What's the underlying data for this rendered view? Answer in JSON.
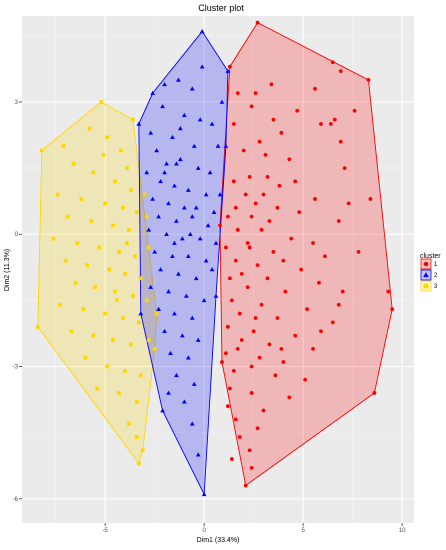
{
  "chart_data": {
    "type": "scatter",
    "title": "Cluster plot",
    "xlabel": "Dim1 (33.4%)",
    "ylabel": "Dim2 (11.3%)",
    "xlim": [
      -9.2,
      10.6
    ],
    "ylim": [
      -6.55,
      4.95
    ],
    "xticks": [
      -5,
      0,
      5,
      10
    ],
    "xtick_labels": [
      "-5",
      "0",
      "5",
      "10"
    ],
    "yticks": [
      -6,
      -3,
      0,
      3
    ],
    "ytick_labels": [
      "-6",
      "-3",
      "0",
      "3"
    ],
    "grid": true,
    "legend": {
      "title": "cluster",
      "position": "right"
    },
    "series": [
      {
        "name": "1",
        "color": "#FF0000",
        "fill": "#F4A3A3",
        "marker": "circle",
        "hull": [
          [
            2.7,
            4.8
          ],
          [
            8.3,
            3.5
          ],
          [
            9.5,
            -1.7
          ],
          [
            8.6,
            -3.6
          ],
          [
            2.1,
            -5.7
          ],
          [
            0.9,
            -2.9
          ],
          [
            0.8,
            0.2
          ],
          [
            1.3,
            3.8
          ]
        ],
        "points": [
          [
            2.7,
            4.8
          ],
          [
            6.5,
            3.9
          ],
          [
            6.9,
            3.7
          ],
          [
            8.3,
            3.5
          ],
          [
            9.5,
            -1.7
          ],
          [
            9.3,
            -1.3
          ],
          [
            8.6,
            -3.6
          ],
          [
            2.1,
            -5.7
          ],
          [
            2.4,
            -5.3
          ],
          [
            0.9,
            -2.9
          ],
          [
            0.8,
            0.2
          ],
          [
            1.3,
            3.8
          ],
          [
            2.6,
            3.2
          ],
          [
            1.7,
            3.2
          ],
          [
            3.4,
            3.4
          ],
          [
            5.6,
            3.3
          ],
          [
            2.4,
            2.9
          ],
          [
            4.7,
            2.8
          ],
          [
            5.9,
            2.5
          ],
          [
            6.6,
            2.6
          ],
          [
            7.6,
            2.8
          ],
          [
            1.5,
            2.5
          ],
          [
            3.9,
            2.3
          ],
          [
            6.4,
            2.5
          ],
          [
            6.9,
            2.1
          ],
          [
            2.8,
            2.1
          ],
          [
            3.1,
            1.8
          ],
          [
            4.3,
            1.7
          ],
          [
            3.2,
            1.3
          ],
          [
            2.3,
            1.3
          ],
          [
            1.5,
            1.2
          ],
          [
            3.8,
            1.1
          ],
          [
            2.1,
            0.9
          ],
          [
            5.6,
            0.8
          ],
          [
            7.3,
            0.7
          ],
          [
            2.6,
            0.7
          ],
          [
            3.7,
            0.6
          ],
          [
            4.8,
            0.5
          ],
          [
            1.2,
            0.4
          ],
          [
            2.4,
            0.4
          ],
          [
            3.3,
            0.3
          ],
          [
            6.8,
            0.3
          ],
          [
            1.7,
            0.1
          ],
          [
            2.9,
            0.1
          ],
          [
            4.4,
            -0.1
          ],
          [
            5.5,
            -0.2
          ],
          [
            1.1,
            -0.3
          ],
          [
            2.3,
            -0.3
          ],
          [
            3.5,
            -0.4
          ],
          [
            6.1,
            -0.5
          ],
          [
            1.6,
            -0.6
          ],
          [
            2.7,
            -0.7
          ],
          [
            4.9,
            -0.8
          ],
          [
            1.3,
            -1.0
          ],
          [
            3.2,
            -1.0
          ],
          [
            5.8,
            -1.1
          ],
          [
            2.2,
            -1.2
          ],
          [
            4.1,
            -1.3
          ],
          [
            7.0,
            -1.3
          ],
          [
            1.4,
            -1.5
          ],
          [
            2.9,
            -1.6
          ],
          [
            5.2,
            -1.7
          ],
          [
            1.8,
            -1.8
          ],
          [
            3.7,
            -1.9
          ],
          [
            6.5,
            -2.0
          ],
          [
            1.2,
            -2.1
          ],
          [
            2.5,
            -2.2
          ],
          [
            4.6,
            -2.3
          ],
          [
            1.9,
            -2.4
          ],
          [
            3.3,
            -2.5
          ],
          [
            5.5,
            -2.6
          ],
          [
            1.1,
            -2.7
          ],
          [
            2.8,
            -2.8
          ],
          [
            4.0,
            -2.9
          ],
          [
            1.5,
            -3.1
          ],
          [
            3.6,
            -3.2
          ],
          [
            5.1,
            -3.3
          ],
          [
            1.3,
            -3.5
          ],
          [
            2.4,
            -3.6
          ],
          [
            4.3,
            -3.7
          ],
          [
            1.2,
            -3.9
          ],
          [
            3.0,
            -4.0
          ],
          [
            1.6,
            -4.2
          ],
          [
            2.7,
            -4.4
          ],
          [
            1.8,
            -4.6
          ],
          [
            2.3,
            -4.9
          ],
          [
            1.4,
            -5.1
          ],
          [
            5.9,
            -2.2
          ],
          [
            6.8,
            -1.6
          ],
          [
            7.8,
            -0.4
          ],
          [
            8.4,
            0.8
          ],
          [
            7.1,
            1.5
          ],
          [
            4.6,
            1.2
          ],
          [
            2.0,
            1.9
          ],
          [
            3.5,
            2.6
          ],
          [
            1.9,
            -0.9
          ],
          [
            2.6,
            -1.9
          ],
          [
            3.9,
            -2.6
          ],
          [
            1.6,
            0.6
          ],
          [
            2.2,
            -0.2
          ],
          [
            3.0,
            0.9
          ],
          [
            4.0,
            -0.6
          ],
          [
            2.4,
            -3.0
          ],
          [
            1.7,
            -2.6
          ]
        ]
      },
      {
        "name": "2",
        "color": "#0000FF",
        "fill": "#A3A3F4",
        "marker": "triangle",
        "hull": [
          [
            -0.1,
            4.6
          ],
          [
            1.2,
            3.7
          ],
          [
            1.1,
            2.0
          ],
          [
            0.6,
            -1.4
          ],
          [
            0.0,
            -5.9
          ],
          [
            -2.1,
            -4.0
          ],
          [
            -3.2,
            -1.8
          ],
          [
            -3.3,
            2.5
          ],
          [
            -2.6,
            3.2
          ]
        ],
        "points": [
          [
            -0.1,
            4.6
          ],
          [
            1.2,
            3.7
          ],
          [
            1.1,
            2.0
          ],
          [
            0.6,
            -1.4
          ],
          [
            0.0,
            -5.9
          ],
          [
            -2.1,
            -4.0
          ],
          [
            -3.2,
            -1.8
          ],
          [
            -3.3,
            2.5
          ],
          [
            -2.6,
            3.2
          ],
          [
            -1.3,
            3.5
          ],
          [
            -0.6,
            3.3
          ],
          [
            -2.1,
            2.9
          ],
          [
            -1.0,
            2.7
          ],
          [
            -0.2,
            2.6
          ],
          [
            0.4,
            2.5
          ],
          [
            -2.7,
            2.3
          ],
          [
            -1.6,
            2.2
          ],
          [
            -0.5,
            2.0
          ],
          [
            0.7,
            2.0
          ],
          [
            -2.4,
            1.9
          ],
          [
            -1.9,
            1.6
          ],
          [
            -1.2,
            1.7
          ],
          [
            -0.3,
            1.5
          ],
          [
            0.3,
            1.4
          ],
          [
            -2.9,
            1.4
          ],
          [
            -2.2,
            1.2
          ],
          [
            -1.5,
            1.1
          ],
          [
            -0.8,
            1.0
          ],
          [
            0.1,
            0.9
          ],
          [
            0.8,
            0.9
          ],
          [
            -2.6,
            0.8
          ],
          [
            -1.8,
            0.7
          ],
          [
            -1.0,
            0.6
          ],
          [
            -0.4,
            0.6
          ],
          [
            0.5,
            0.5
          ],
          [
            -2.3,
            0.4
          ],
          [
            -1.4,
            0.3
          ],
          [
            -0.6,
            0.4
          ],
          [
            0.2,
            0.2
          ],
          [
            -2.8,
            0.1
          ],
          [
            -1.9,
            0.0
          ],
          [
            -1.1,
            -0.1
          ],
          [
            -0.2,
            -0.1
          ],
          [
            0.6,
            -0.2
          ],
          [
            -2.5,
            -0.4
          ],
          [
            -1.6,
            -0.5
          ],
          [
            -0.8,
            -0.5
          ],
          [
            0.1,
            -0.6
          ],
          [
            -2.2,
            -0.8
          ],
          [
            -1.3,
            -0.9
          ],
          [
            -0.4,
            -1.0
          ],
          [
            -2.7,
            -1.2
          ],
          [
            -1.8,
            -1.3
          ],
          [
            -0.9,
            -1.4
          ],
          [
            0.0,
            -1.5
          ],
          [
            -2.3,
            -1.7
          ],
          [
            -1.5,
            -1.8
          ],
          [
            -0.6,
            -1.9
          ],
          [
            -2.0,
            -2.2
          ],
          [
            -1.1,
            -2.3
          ],
          [
            -0.3,
            -2.4
          ],
          [
            -1.7,
            -2.7
          ],
          [
            -0.8,
            -2.8
          ],
          [
            -1.4,
            -3.2
          ],
          [
            -0.5,
            -3.4
          ],
          [
            -1.8,
            -3.6
          ],
          [
            -1.0,
            -3.8
          ],
          [
            -0.6,
            -4.3
          ],
          [
            -0.3,
            -5.0
          ],
          [
            -1.2,
            2.4
          ],
          [
            -2.0,
            3.4
          ],
          [
            0.9,
            3.0
          ],
          [
            -0.7,
            0.0
          ],
          [
            -1.5,
            -0.2
          ],
          [
            0.4,
            -0.8
          ],
          [
            -2.0,
            1.4
          ],
          [
            -0.1,
            3.8
          ],
          [
            -1.4,
            1.6
          ]
        ]
      },
      {
        "name": "3",
        "color": "#FFD700",
        "fill": "#F4E7A8",
        "marker": "square",
        "hull": [
          [
            -5.2,
            3.0
          ],
          [
            -3.6,
            2.6
          ],
          [
            -2.4,
            -1.8
          ],
          [
            -2.5,
            -2.6
          ],
          [
            -3.1,
            -4.9
          ],
          [
            -3.3,
            -5.2
          ],
          [
            -8.4,
            -2.1
          ],
          [
            -8.2,
            1.9
          ]
        ],
        "points": [
          [
            -5.2,
            3.0
          ],
          [
            -3.6,
            2.6
          ],
          [
            -2.4,
            -1.8
          ],
          [
            -2.5,
            -2.6
          ],
          [
            -3.1,
            -4.9
          ],
          [
            -3.3,
            -5.2
          ],
          [
            -8.4,
            -2.1
          ],
          [
            -8.2,
            1.9
          ],
          [
            -7.1,
            2.0
          ],
          [
            -5.8,
            2.4
          ],
          [
            -4.9,
            2.2
          ],
          [
            -4.2,
            1.9
          ],
          [
            -3.9,
            1.5
          ],
          [
            -6.6,
            1.6
          ],
          [
            -5.6,
            1.4
          ],
          [
            -4.5,
            1.2
          ],
          [
            -3.7,
            1.0
          ],
          [
            -7.4,
            0.9
          ],
          [
            -6.2,
            0.8
          ],
          [
            -5.0,
            0.7
          ],
          [
            -4.1,
            0.6
          ],
          [
            -3.4,
            0.5
          ],
          [
            -6.9,
            0.4
          ],
          [
            -5.7,
            0.3
          ],
          [
            -4.6,
            0.2
          ],
          [
            -3.8,
            0.1
          ],
          [
            -2.9,
            0.4
          ],
          [
            -7.6,
            -0.1
          ],
          [
            -6.4,
            -0.2
          ],
          [
            -5.3,
            -0.3
          ],
          [
            -4.3,
            -0.4
          ],
          [
            -3.5,
            -0.5
          ],
          [
            -2.8,
            -0.3
          ],
          [
            -7.0,
            -0.6
          ],
          [
            -5.9,
            -0.7
          ],
          [
            -4.8,
            -0.8
          ],
          [
            -4.0,
            -0.9
          ],
          [
            -3.2,
            -1.0
          ],
          [
            -6.5,
            -1.1
          ],
          [
            -5.5,
            -1.2
          ],
          [
            -4.5,
            -1.3
          ],
          [
            -3.6,
            -1.4
          ],
          [
            -2.9,
            -1.5
          ],
          [
            -7.3,
            -1.6
          ],
          [
            -6.1,
            -1.7
          ],
          [
            -5.0,
            -1.8
          ],
          [
            -4.1,
            -1.9
          ],
          [
            -3.3,
            -2.0
          ],
          [
            -6.7,
            -2.2
          ],
          [
            -5.6,
            -2.3
          ],
          [
            -4.6,
            -2.4
          ],
          [
            -3.7,
            -2.5
          ],
          [
            -2.8,
            -2.4
          ],
          [
            -6.0,
            -2.8
          ],
          [
            -4.9,
            -3.0
          ],
          [
            -4.0,
            -3.1
          ],
          [
            -3.2,
            -3.2
          ],
          [
            -5.4,
            -3.5
          ],
          [
            -4.3,
            -3.6
          ],
          [
            -3.4,
            -3.8
          ],
          [
            -3.8,
            -4.3
          ],
          [
            -3.4,
            -4.6
          ],
          [
            -5.1,
            1.8
          ],
          [
            -3.0,
            0.9
          ],
          [
            -4.4,
            -1.5
          ],
          [
            -3.9,
            -0.2
          ]
        ]
      }
    ]
  }
}
